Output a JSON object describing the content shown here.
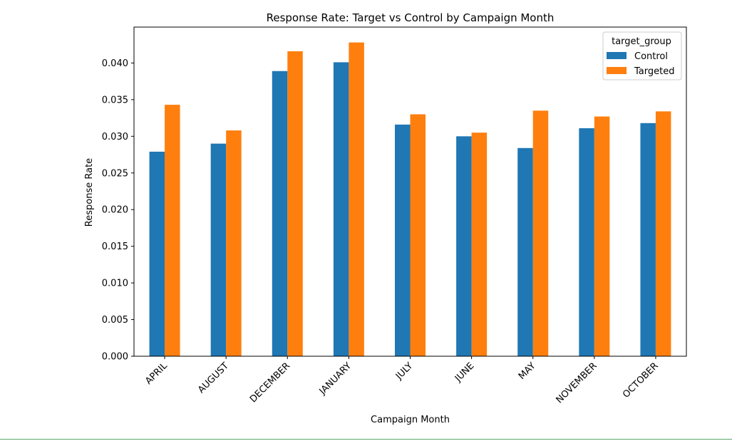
{
  "chart_data": {
    "type": "bar",
    "title": "Response Rate: Target vs Control by Campaign Month",
    "xlabel": "Campaign Month",
    "ylabel": "Response Rate",
    "categories": [
      "APRIL",
      "AUGUST",
      "DECEMBER",
      "JANUARY",
      "JULY",
      "JUNE",
      "MAY",
      "NOVEMBER",
      "OCTOBER"
    ],
    "series": [
      {
        "name": "Control",
        "color": "#1f77b4",
        "values": [
          0.0279,
          0.029,
          0.0389,
          0.0401,
          0.0316,
          0.03,
          0.0284,
          0.0311,
          0.0318
        ]
      },
      {
        "name": "Targeted",
        "color": "#ff7f0e",
        "values": [
          0.0343,
          0.0308,
          0.0416,
          0.0428,
          0.033,
          0.0305,
          0.0335,
          0.0327,
          0.0334
        ]
      }
    ],
    "ylim": [
      0,
      0.0449
    ],
    "yticks": [
      "0.000",
      "0.005",
      "0.010",
      "0.015",
      "0.020",
      "0.025",
      "0.030",
      "0.035",
      "0.040"
    ],
    "legend": {
      "title": "target_group",
      "placement": "top-right"
    },
    "grid": false
  },
  "footer_line_color": "#5aa469"
}
